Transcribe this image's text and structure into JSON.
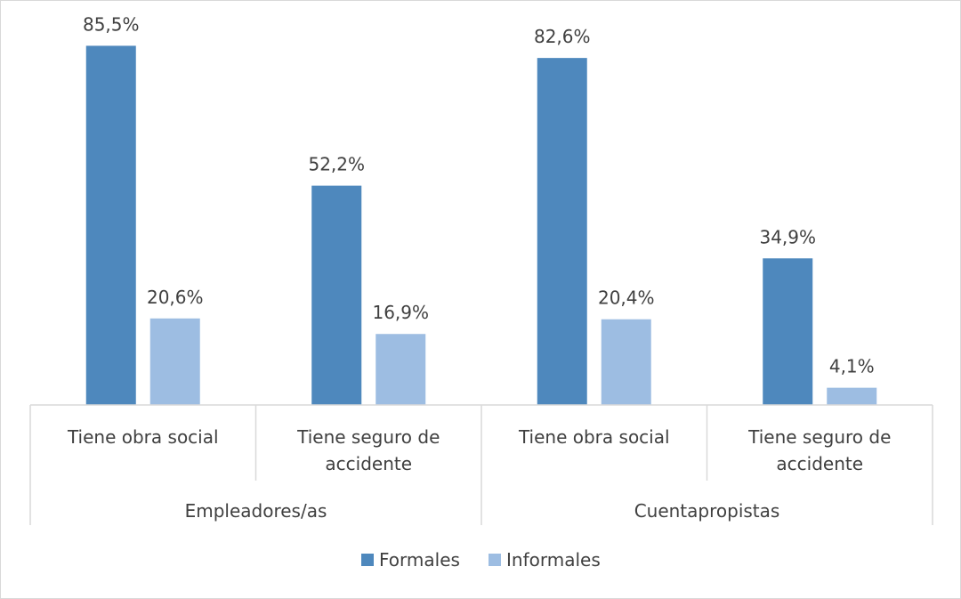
{
  "chart_data": {
    "type": "bar",
    "groups": [
      {
        "name": "Empleadores/as",
        "categories": [
          [
            "Tiene obra social"
          ],
          [
            "Tiene seguro de",
            "accidente"
          ]
        ]
      },
      {
        "name": "Cuentapropistas",
        "categories": [
          [
            "Tiene obra social"
          ],
          [
            "Tiene seguro de",
            "accidente"
          ]
        ]
      }
    ],
    "categories": [
      "Empleadores/as - Tiene obra social",
      "Empleadores/as - Tiene seguro de accidente",
      "Cuentapropistas - Tiene obra social",
      "Cuentapropistas - Tiene seguro de accidente"
    ],
    "series": [
      {
        "name": "Formales",
        "values": [
          85.5,
          52.2,
          82.6,
          34.9
        ],
        "labels": [
          "85,5%",
          "52,2%",
          "82,6%",
          "34,9%"
        ],
        "color": "#4e88bd"
      },
      {
        "name": "Informales",
        "values": [
          20.6,
          16.9,
          20.4,
          4.1
        ],
        "labels": [
          "20,6%",
          "16,9%",
          "20,4%",
          "4,1%"
        ],
        "color": "#9dbde2"
      }
    ],
    "ylim": [
      0,
      100
    ],
    "grid": false,
    "legend": "bottom",
    "title": "",
    "xlabel": "",
    "ylabel": ""
  }
}
